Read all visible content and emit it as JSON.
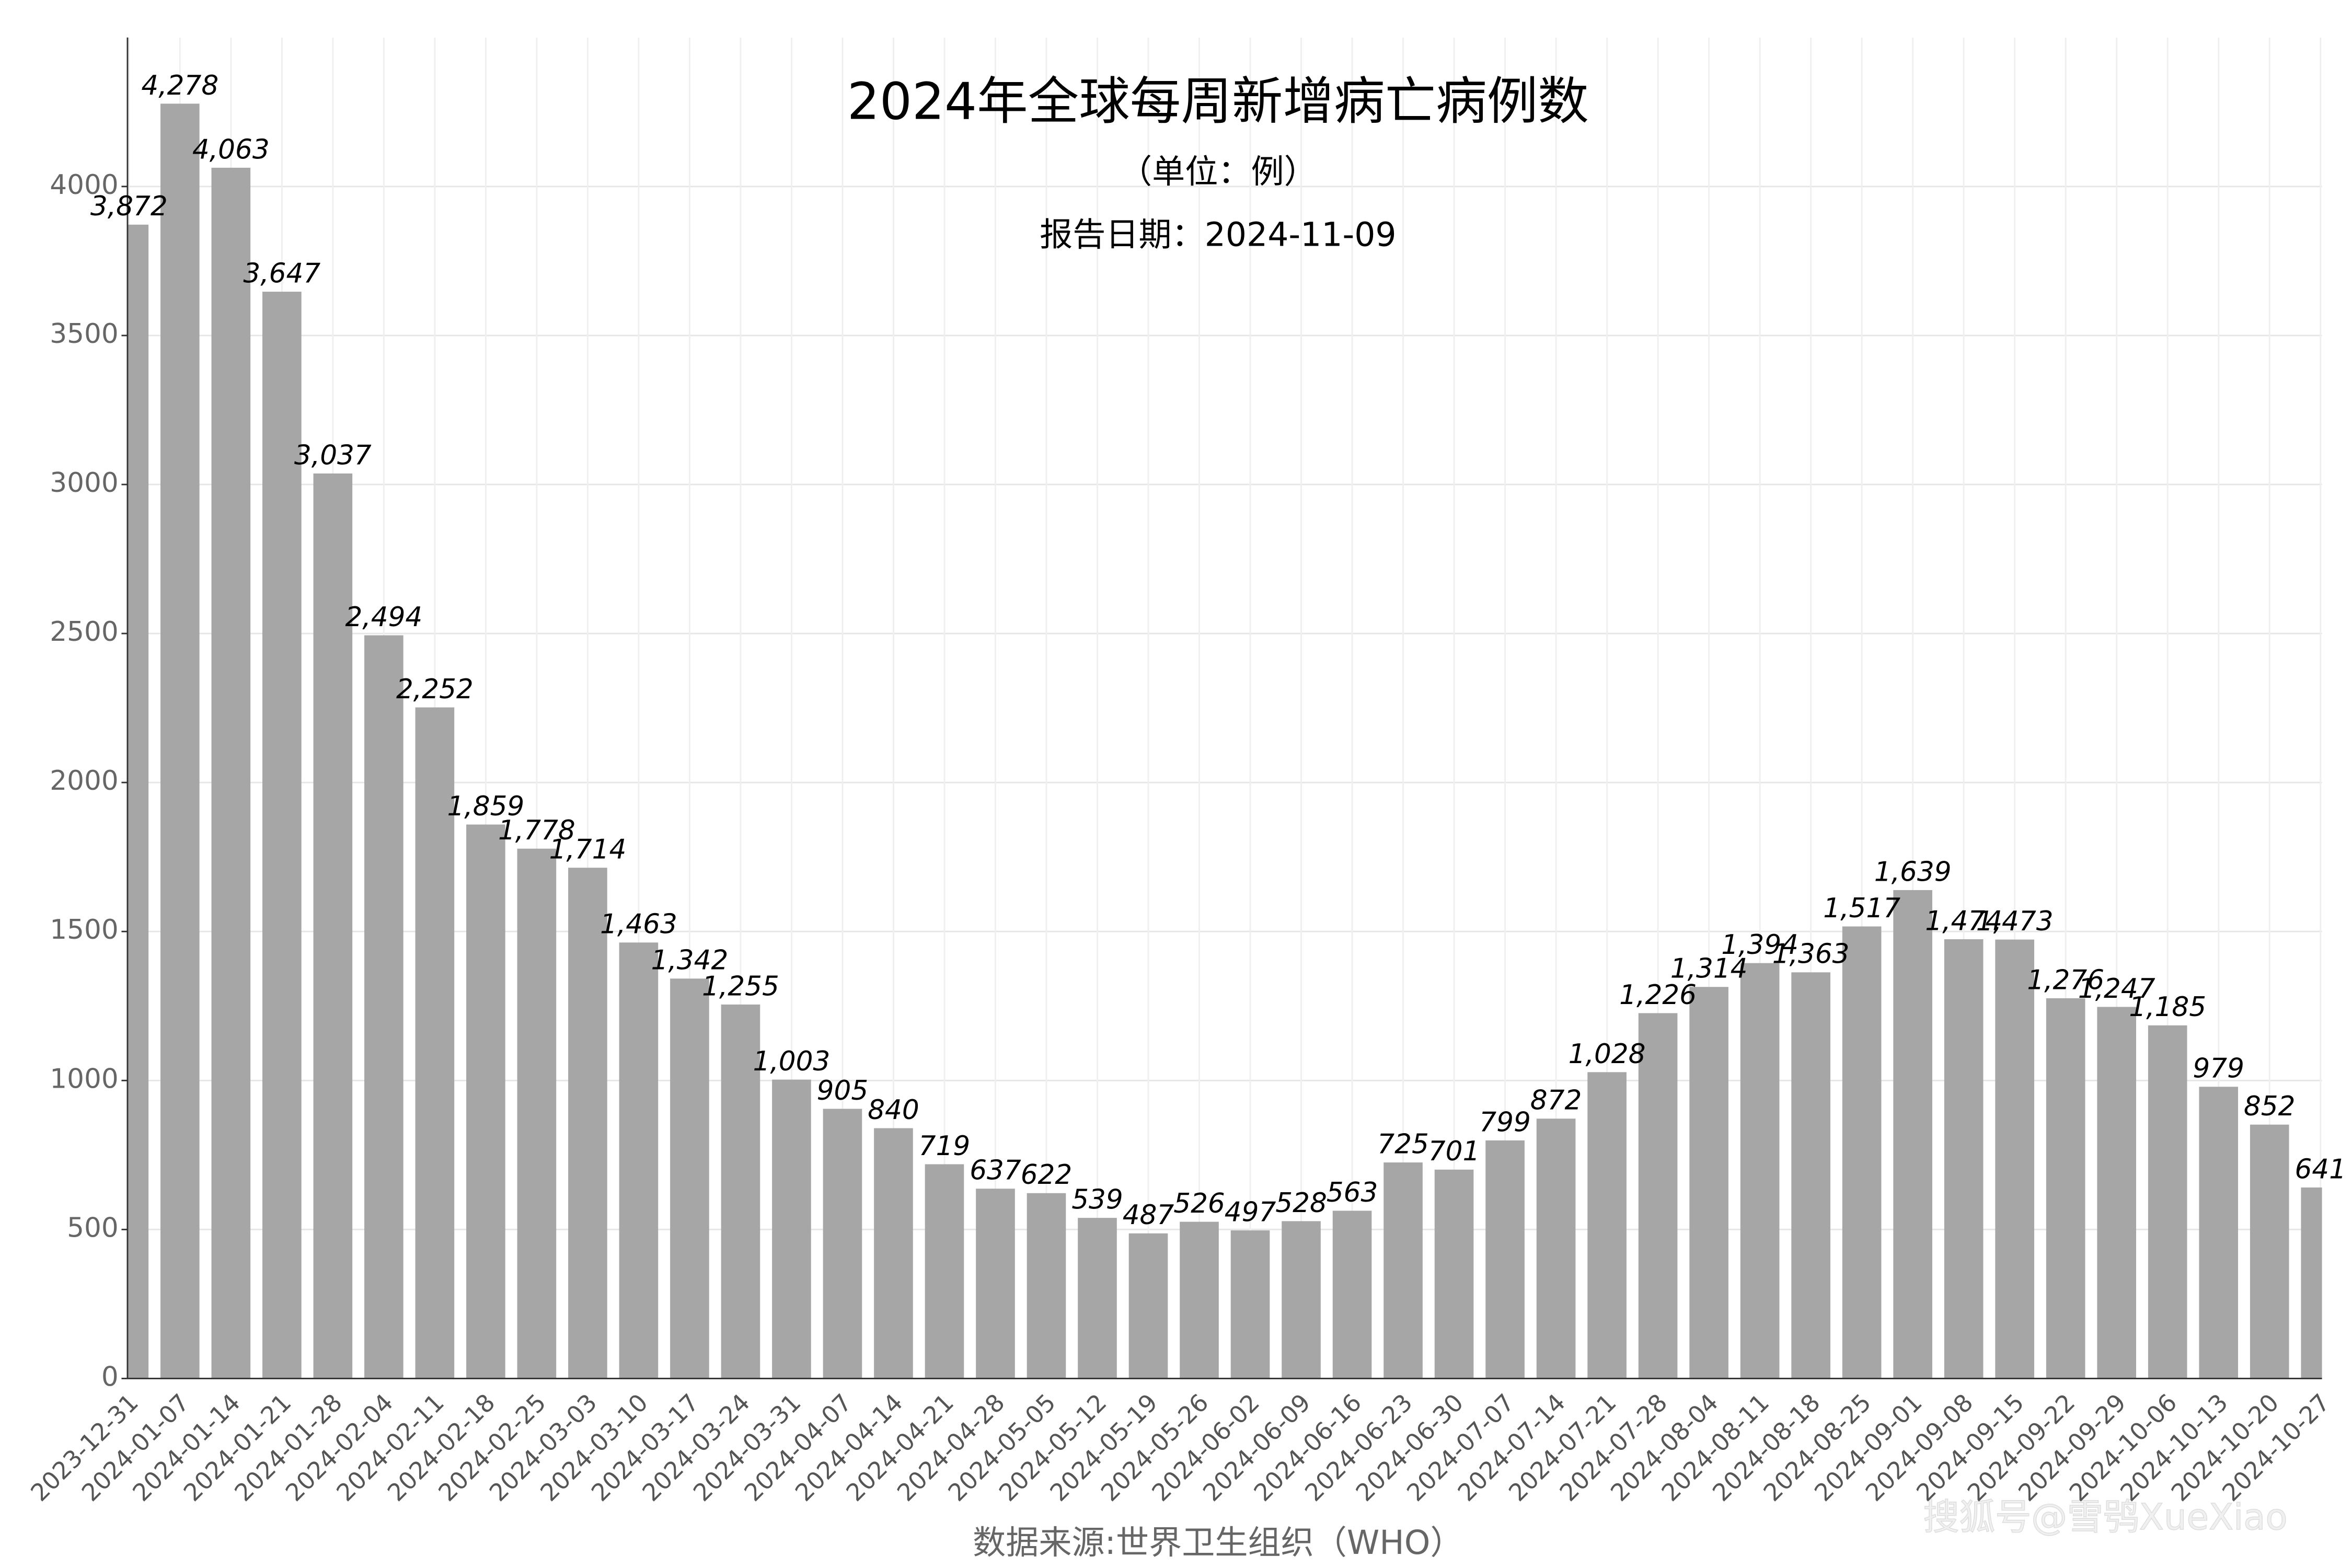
{
  "chart_data": {
    "type": "bar",
    "title": "2024年全球每周新增病亡病例数",
    "subtitle": "（单位：例）",
    "report_date": "报告日期：2024-11-09",
    "source": "数据来源:世界卫生组织（WHO）",
    "watermark": "搜狐号@雪鸮XueXiao",
    "categories": [
      "2023-12-31",
      "2024-01-07",
      "2024-01-14",
      "2024-01-21",
      "2024-01-28",
      "2024-02-04",
      "2024-02-11",
      "2024-02-18",
      "2024-02-25",
      "2024-03-03",
      "2024-03-10",
      "2024-03-17",
      "2024-03-24",
      "2024-03-31",
      "2024-04-07",
      "2024-04-14",
      "2024-04-21",
      "2024-04-28",
      "2024-05-05",
      "2024-05-12",
      "2024-05-19",
      "2024-05-26",
      "2024-06-02",
      "2024-06-09",
      "2024-06-16",
      "2024-06-23",
      "2024-06-30",
      "2024-07-07",
      "2024-07-14",
      "2024-07-21",
      "2024-07-28",
      "2024-08-04",
      "2024-08-11",
      "2024-08-18",
      "2024-08-25",
      "2024-09-01",
      "2024-09-08",
      "2024-09-15",
      "2024-09-22",
      "2024-09-29",
      "2024-10-06",
      "2024-10-13",
      "2024-10-20",
      "2024-10-27"
    ],
    "values": [
      3872,
      4278,
      4063,
      3647,
      3037,
      2494,
      2252,
      1859,
      1778,
      1714,
      1463,
      1342,
      1255,
      1003,
      905,
      840,
      719,
      637,
      622,
      539,
      487,
      526,
      497,
      528,
      563,
      725,
      701,
      799,
      872,
      1028,
      1226,
      1314,
      1394,
      1363,
      1517,
      1639,
      1474,
      1473,
      1276,
      1247,
      1185,
      979,
      852,
      641
    ],
    "value_labels": [
      "3,872",
      "4,278",
      "4,063",
      "3,647",
      "3,037",
      "2,494",
      "2,252",
      "1,859",
      "1,778",
      "1,714",
      "1,463",
      "1,342",
      "1,255",
      "1,003",
      "905",
      "840",
      "719",
      "637",
      "622",
      "539",
      "487",
      "526",
      "497",
      "528",
      "563",
      "725",
      "701",
      "799",
      "872",
      "1,028",
      "1,226",
      "1,314",
      "1,394",
      "1,363",
      "1,517",
      "1,639",
      "1,474",
      "1,473",
      "1,276",
      "1,247",
      "1,185",
      "979",
      "852",
      "641"
    ],
    "color": "#a6a6a6",
    "ylim": [
      0,
      4500
    ],
    "yticks": [
      0,
      500,
      1000,
      1500,
      2000,
      2500,
      3000,
      3500,
      4000
    ],
    "grid": true
  }
}
